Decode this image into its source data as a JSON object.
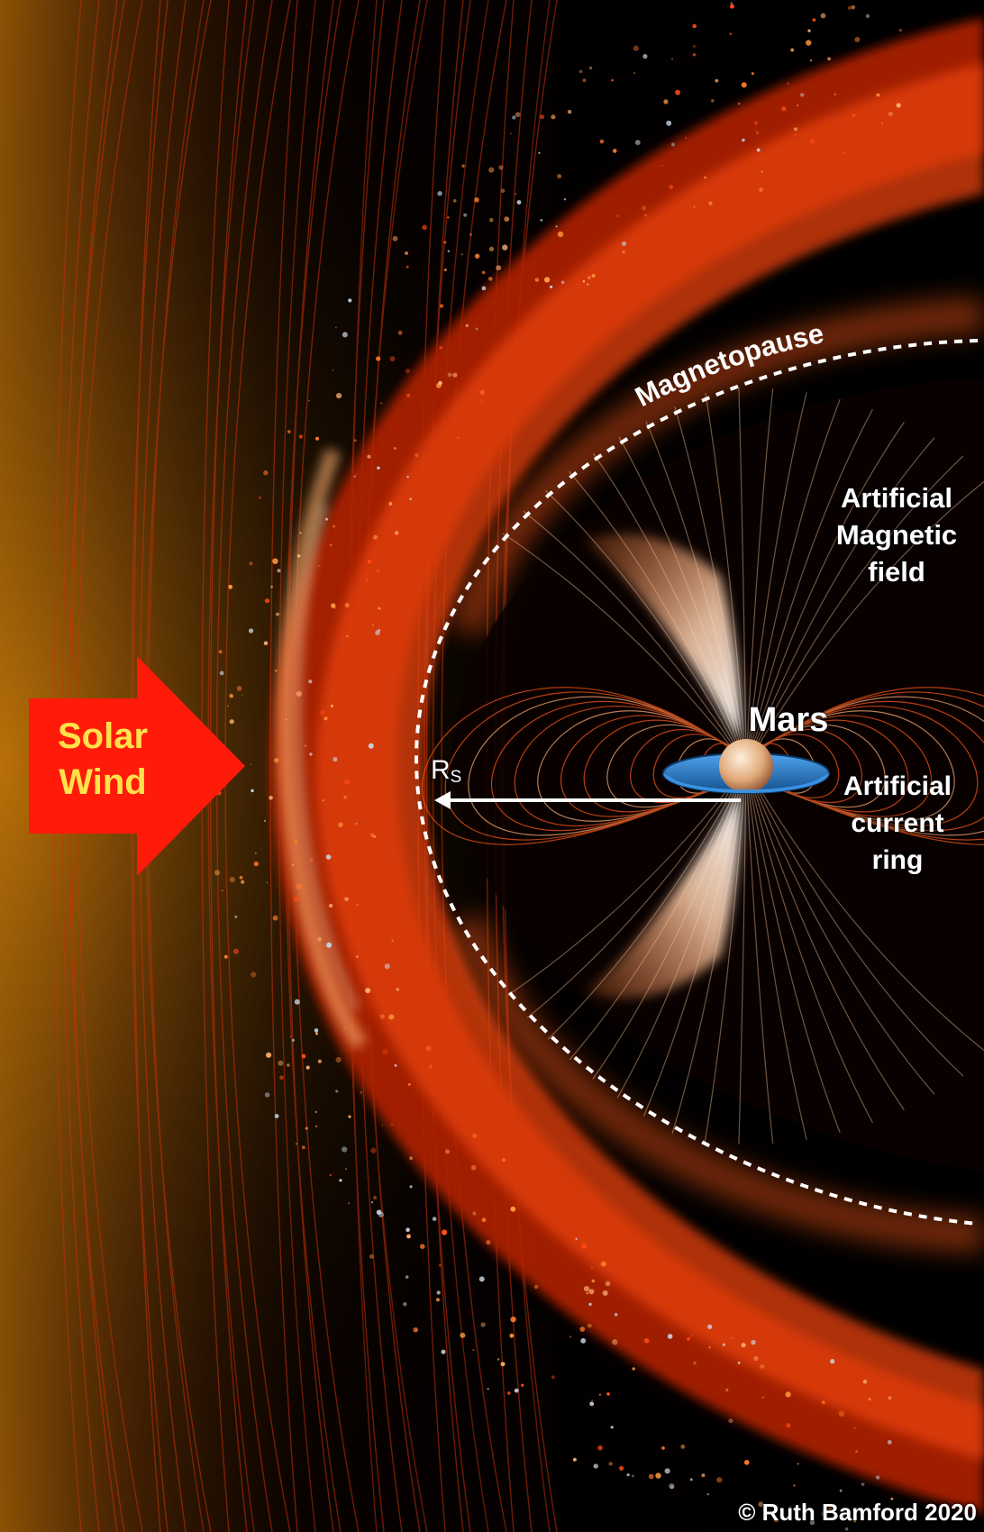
{
  "labels": {
    "solar_wind_line1": "Solar",
    "solar_wind_line2": "Wind",
    "magnetopause": "Magnetopause",
    "field_line1": "Artificial",
    "field_line2": "Magnetic",
    "field_line3": "field",
    "mars": "Mars",
    "ring_line1": "Artificial",
    "ring_line2": "current",
    "ring_line3": "ring",
    "radius_symbol": "R",
    "radius_subscript": "S",
    "copyright": "© Ruth Bamford 2020"
  },
  "colors": {
    "solar_wind_arrow": "#ff1a0a",
    "solar_wind_text": "#ffe24a",
    "plasma_hot": "#ff6a1a",
    "plasma_core": "#ffd4a0",
    "plasma_dark": "#5a0a00",
    "field_line": "#ff5a1a",
    "current_ring": "#2e86d6",
    "planet": "#e8b48a",
    "label": "#ffffff",
    "background": "#000000"
  },
  "icons": {
    "solar_wind_arrow": "right-arrow-icon",
    "radius_arrow": "left-arrow-icon"
  }
}
